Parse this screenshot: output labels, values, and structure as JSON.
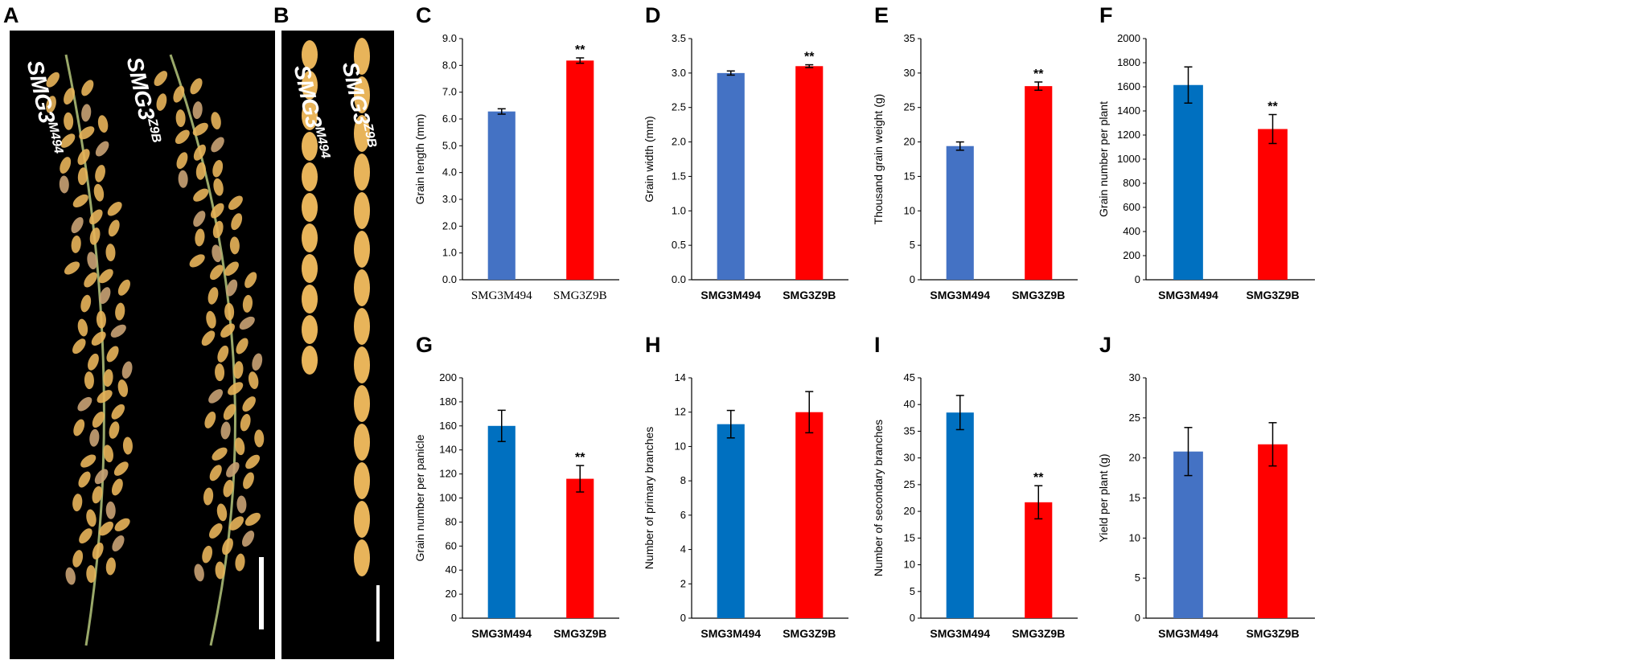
{
  "figure": {
    "panels": {
      "A": {
        "letter": "A",
        "label_left": {
          "text": "SMG3",
          "sup": "M494"
        },
        "label_right": {
          "text": "SMG3",
          "sup": "Z9B"
        }
      },
      "B": {
        "letter": "B",
        "label_left": {
          "text": "SMG3",
          "sup": "M494"
        },
        "label_right": {
          "text": "SMG3",
          "sup": "Z9B"
        }
      }
    },
    "colors": {
      "blue_light": "#4472c4",
      "blue_dark": "#0070c0",
      "red": "#ff0000",
      "grain": "#e8b45a"
    }
  },
  "chart_data": [
    {
      "id": "C",
      "letter": "C",
      "type": "bar",
      "categories": [
        "SMG3M494",
        "SMG3Z9B"
      ],
      "values": [
        6.28,
        8.18
      ],
      "errors": [
        0.1,
        0.1
      ],
      "colors": [
        "#4472c4",
        "#ff0000"
      ],
      "significance": [
        "",
        "**"
      ],
      "ylabel": "Grain length (mm)",
      "ylim": [
        0,
        9
      ],
      "ticks": [
        "0.0",
        "1.0",
        "2.0",
        "3.0",
        "4.0",
        "5.0",
        "6.0",
        "7.0",
        "8.0",
        "9.0"
      ],
      "cat_font": "serif"
    },
    {
      "id": "D",
      "letter": "D",
      "type": "bar",
      "categories": [
        "SMG3M494",
        "SMG3Z9B"
      ],
      "values": [
        3.0,
        3.1
      ],
      "errors": [
        0.03,
        0.02
      ],
      "colors": [
        "#4472c4",
        "#ff0000"
      ],
      "significance": [
        "",
        "**"
      ],
      "ylabel": "Grain width (mm)",
      "ylim": [
        0,
        3.5
      ],
      "ticks": [
        "0.0",
        "0.5",
        "1.0",
        "1.5",
        "2.0",
        "2.5",
        "3.0",
        "3.5"
      ],
      "cat_font": "sans"
    },
    {
      "id": "E",
      "letter": "E",
      "type": "bar",
      "categories": [
        "SMG3M494",
        "SMG3Z9B"
      ],
      "values": [
        19.4,
        28.1
      ],
      "errors": [
        0.6,
        0.6
      ],
      "colors": [
        "#4472c4",
        "#ff0000"
      ],
      "significance": [
        "",
        "**"
      ],
      "ylabel": "Thousand grain weight (g)",
      "ylim": [
        0,
        35
      ],
      "ticks": [
        "0",
        "5",
        "10",
        "15",
        "20",
        "25",
        "30",
        "35"
      ],
      "cat_font": "sans"
    },
    {
      "id": "F",
      "letter": "F",
      "type": "bar",
      "categories": [
        "SMG3M494",
        "SMG3Z9B"
      ],
      "values": [
        1615,
        1250
      ],
      "errors": [
        150,
        120
      ],
      "colors": [
        "#0070c0",
        "#ff0000"
      ],
      "significance": [
        "",
        "**"
      ],
      "ylabel": "Grain number per plant",
      "ylim": [
        0,
        2000
      ],
      "ticks": [
        "0",
        "200",
        "400",
        "600",
        "800",
        "1000",
        "1200",
        "1400",
        "1600",
        "1800",
        "2000"
      ],
      "cat_font": "sans"
    },
    {
      "id": "G",
      "letter": "G",
      "type": "bar",
      "categories": [
        "SMG3M494",
        "SMG3Z9B"
      ],
      "values": [
        160,
        116
      ],
      "errors": [
        13,
        11
      ],
      "colors": [
        "#0070c0",
        "#ff0000"
      ],
      "significance": [
        "",
        "**"
      ],
      "ylabel": "Grain number per panicle",
      "ylim": [
        0,
        200
      ],
      "ticks": [
        "0",
        "20",
        "40",
        "60",
        "80",
        "100",
        "120",
        "140",
        "160",
        "180",
        "200"
      ],
      "cat_font": "sans"
    },
    {
      "id": "H",
      "letter": "H",
      "type": "bar",
      "categories": [
        "SMG3M494",
        "SMG3Z9B"
      ],
      "values": [
        11.3,
        12.0
      ],
      "errors": [
        0.8,
        1.2
      ],
      "colors": [
        "#0070c0",
        "#ff0000"
      ],
      "significance": [
        "",
        ""
      ],
      "ylabel": "Number of primary branches",
      "ylim": [
        0,
        14
      ],
      "ticks": [
        "0",
        "2",
        "4",
        "6",
        "8",
        "10",
        "12",
        "14"
      ],
      "cat_font": "sans"
    },
    {
      "id": "I",
      "letter": "I",
      "type": "bar",
      "categories": [
        "SMG3M494",
        "SMG3Z9B"
      ],
      "values": [
        38.5,
        21.7
      ],
      "errors": [
        3.2,
        3.1
      ],
      "colors": [
        "#0070c0",
        "#ff0000"
      ],
      "significance": [
        "",
        "**"
      ],
      "ylabel": "Number of secondary branches",
      "ylim": [
        0,
        45
      ],
      "ticks": [
        "0",
        "5",
        "10",
        "15",
        "20",
        "25",
        "30",
        "35",
        "40",
        "45"
      ],
      "cat_font": "sans"
    },
    {
      "id": "J",
      "letter": "J",
      "type": "bar",
      "categories": [
        "SMG3M494",
        "SMG3Z9B"
      ],
      "values": [
        20.8,
        21.7
      ],
      "errors": [
        3.0,
        2.7
      ],
      "colors": [
        "#4472c4",
        "#ff0000"
      ],
      "significance": [
        "",
        ""
      ],
      "ylabel": "Yield per plant (g)",
      "ylim": [
        0,
        30
      ],
      "ticks": [
        "0",
        "5",
        "10",
        "15",
        "20",
        "25",
        "30"
      ],
      "cat_font": "sans"
    }
  ]
}
